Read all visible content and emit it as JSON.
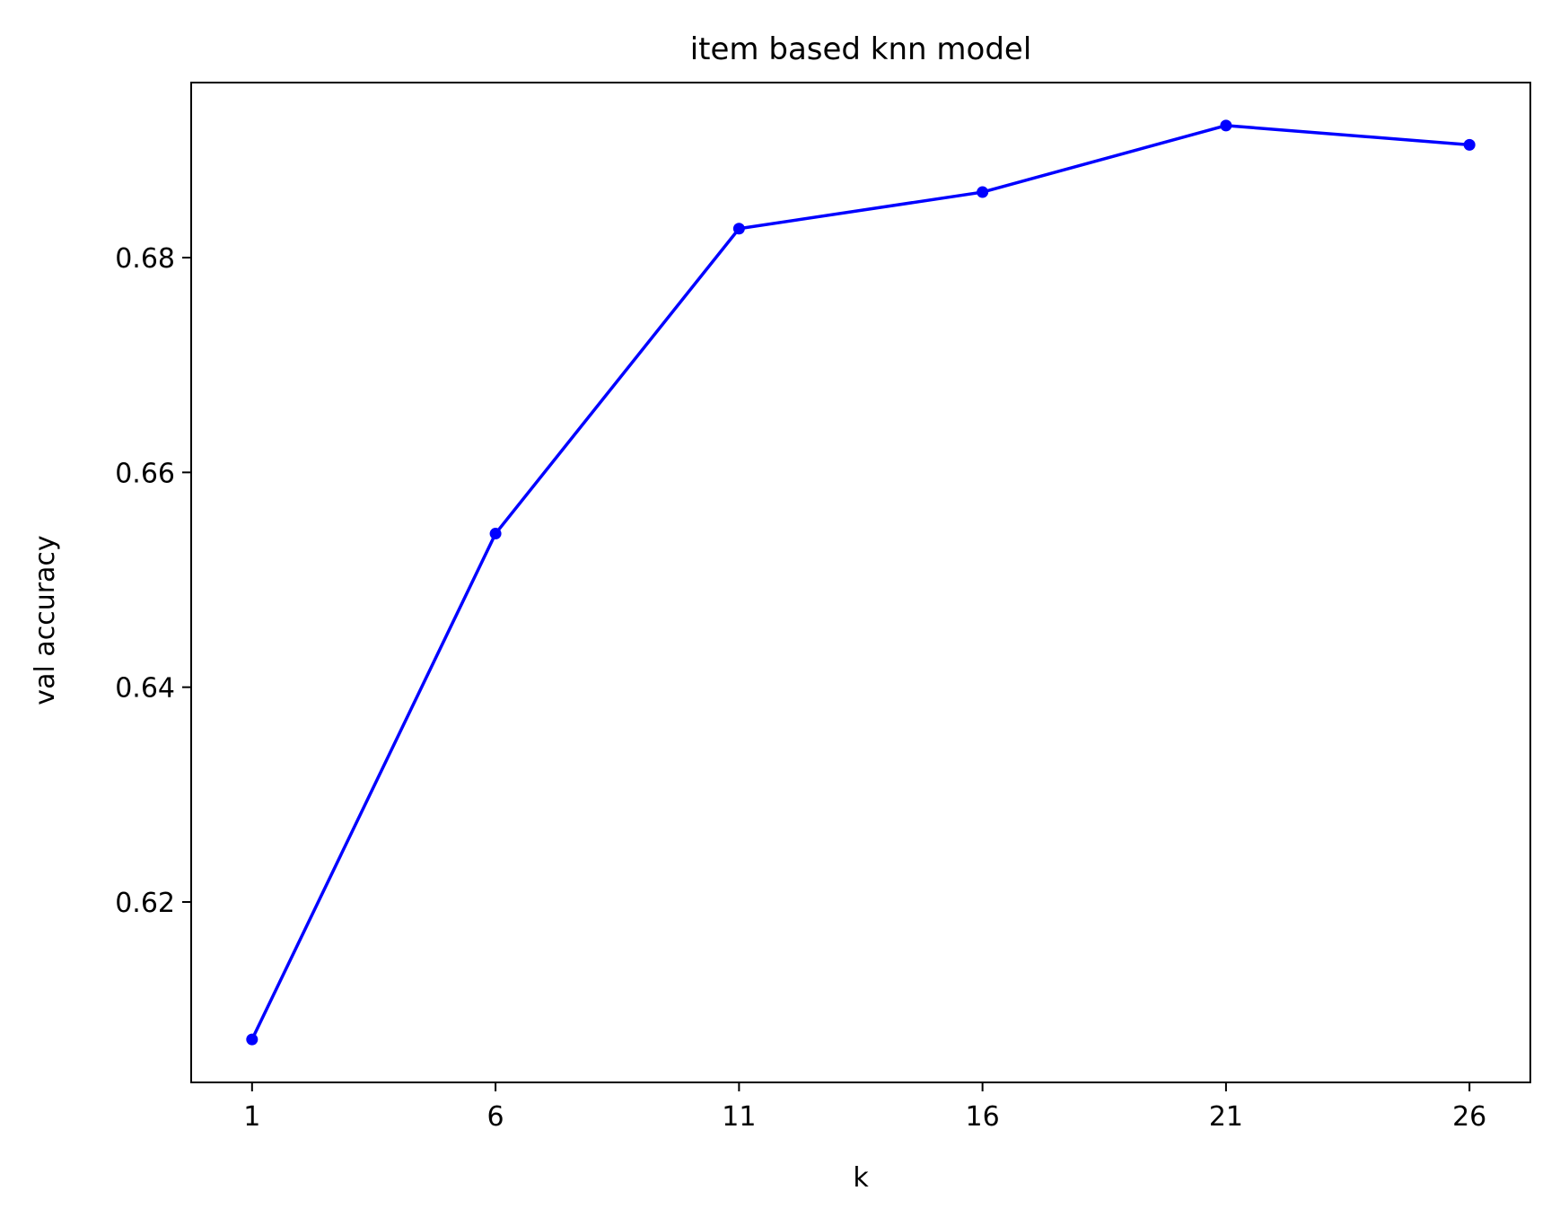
{
  "chart_data": {
    "type": "line",
    "title": "item based knn model",
    "xlabel": "k",
    "ylabel": "val accuracy",
    "x": [
      1,
      6,
      11,
      16,
      21,
      26
    ],
    "xticks": [
      "1",
      "6",
      "11",
      "16",
      "21",
      "26"
    ],
    "yticks": [
      "0.62",
      "0.64",
      "0.66",
      "0.68"
    ],
    "ytick_values": [
      0.62,
      0.64,
      0.66,
      0.68
    ],
    "xlim": [
      -0.25,
      27.25
    ],
    "ylim": [
      0.6032,
      0.6963
    ],
    "grid": false,
    "series": [
      {
        "values": [
          0.6072,
          0.6543,
          0.6827,
          0.6861,
          0.6923,
          0.6905
        ],
        "color": "#0000ff",
        "marker": "dot"
      }
    ]
  }
}
